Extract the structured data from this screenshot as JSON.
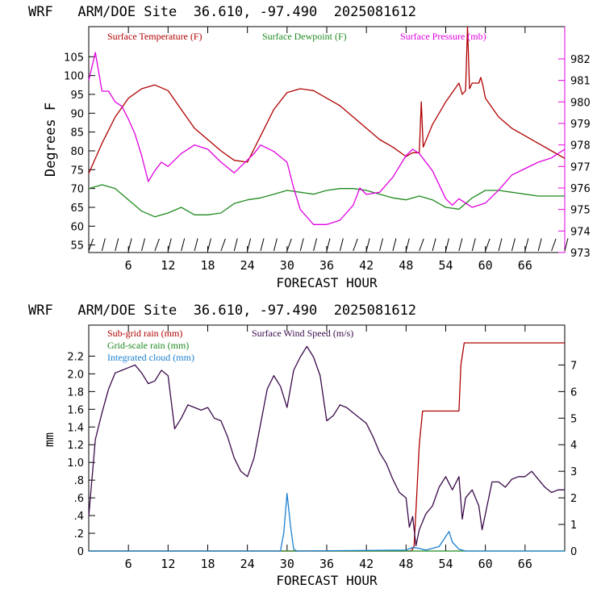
{
  "colors": {
    "temperature": "#b00000",
    "dewpoint": "#1f8a1f",
    "pressure": "#e000e0",
    "subgrid_rain": "#b00000",
    "gridscale_rain": "#1f8a1f",
    "cloud": "#1a7fd0",
    "wind": "#3a0a4a",
    "axis": "#000000"
  },
  "chart_data": [
    {
      "type": "line",
      "title": "WRF   ARM/DOE Site  36.610, -97.490  2025081612",
      "xlabel": "FORECAST HOUR",
      "ylabel": "Degrees F",
      "xlim": [
        0,
        72
      ],
      "ylim": [
        53,
        113
      ],
      "y2lim": [
        973,
        983.5
      ],
      "x_ticks": [
        6,
        12,
        18,
        24,
        30,
        36,
        42,
        48,
        54,
        60,
        66
      ],
      "y_ticks": [
        55,
        60,
        65,
        70,
        75,
        80,
        85,
        90,
        95,
        100,
        105
      ],
      "y2_ticks": [
        973,
        974,
        975,
        976,
        977,
        978,
        979,
        980,
        981,
        982
      ],
      "legend": [
        "Surface Temperature (F)",
        "Surface Dewpoint (F)",
        "Surface Pressure (mb)"
      ],
      "series": [
        {
          "name": "Surface Temperature (F)",
          "axis": "left",
          "x": [
            0,
            2,
            4,
            6,
            8,
            10,
            12,
            14,
            16,
            18,
            20,
            22,
            24,
            26,
            28,
            30,
            32,
            34,
            36,
            38,
            40,
            42,
            44,
            46,
            48,
            49,
            50,
            50.3,
            50.6,
            52,
            54,
            56,
            56.5,
            57,
            57.3,
            57.6,
            58,
            59,
            59.3,
            59.6,
            60,
            62,
            64,
            66,
            68,
            70,
            72
          ],
          "y": [
            74,
            82,
            89,
            94,
            96.5,
            97.5,
            96,
            91,
            86,
            83,
            80,
            77.5,
            77,
            84,
            91,
            95.5,
            96.5,
            96,
            94,
            92,
            89,
            86,
            83,
            81,
            78.5,
            79.5,
            79.5,
            93,
            81,
            87,
            93,
            98,
            95,
            96,
            113,
            96.5,
            98,
            98,
            99.5,
            97.5,
            94,
            89,
            86,
            84,
            82,
            80,
            78
          ]
        },
        {
          "name": "Surface Dewpoint (F)",
          "axis": "left",
          "x": [
            0,
            2,
            4,
            6,
            8,
            10,
            12,
            14,
            16,
            18,
            20,
            22,
            24,
            26,
            28,
            30,
            32,
            34,
            36,
            38,
            40,
            42,
            44,
            46,
            48,
            50,
            52,
            54,
            56,
            58,
            60,
            62,
            64,
            66,
            68,
            70,
            72
          ],
          "y": [
            70,
            71,
            70,
            67,
            64,
            62.5,
            63.5,
            65,
            63,
            63,
            63.5,
            66,
            67,
            67.5,
            68.5,
            69.5,
            69,
            68.5,
            69.5,
            70,
            70,
            69.5,
            68.5,
            67.5,
            67,
            68,
            67,
            65,
            64.5,
            67.5,
            69.5,
            69.5,
            69,
            68.5,
            68,
            68,
            68
          ]
        },
        {
          "name": "Surface Pressure (mb)",
          "axis": "right",
          "x": [
            0,
            1,
            2,
            3,
            4,
            5,
            6,
            7,
            8,
            9,
            10,
            11,
            12,
            14,
            16,
            18,
            20,
            22,
            23,
            25,
            26,
            28,
            30,
            31,
            32,
            34,
            36,
            38,
            40,
            41,
            42,
            44,
            46,
            48,
            49,
            50,
            52,
            54,
            55,
            56,
            57,
            58,
            60,
            62,
            64,
            66,
            68,
            70,
            72
          ],
          "y": [
            981,
            982.3,
            980.5,
            980.5,
            980,
            979.8,
            979.2,
            978.5,
            977.5,
            976.3,
            976.8,
            977.2,
            977,
            977.6,
            978,
            977.8,
            977.2,
            976.7,
            977,
            977.6,
            978,
            977.7,
            977.2,
            976,
            975,
            974.3,
            974.3,
            974.5,
            975.2,
            976,
            975.7,
            975.8,
            976.5,
            977.5,
            977.8,
            977.6,
            976.8,
            975.5,
            975.2,
            975.5,
            975.3,
            975.1,
            975.3,
            975.9,
            976.6,
            976.9,
            977.2,
            977.4,
            977.8
          ]
        }
      ]
    },
    {
      "type": "line",
      "title": "WRF   ARM/DOE Site  36.610, -97.490  2025081612",
      "xlabel": "FORECAST HOUR",
      "ylabel": "mm",
      "xlim": [
        0,
        72
      ],
      "ylim": [
        0,
        2.55
      ],
      "y2lim": [
        0,
        8.5
      ],
      "x_ticks": [
        6,
        12,
        18,
        24,
        30,
        36,
        42,
        48,
        54,
        60,
        66
      ],
      "y_ticks": [
        0,
        0.2,
        0.4,
        0.6,
        0.8,
        1.0,
        1.2,
        1.4,
        1.6,
        1.8,
        2.0,
        2.2
      ],
      "y_tick_labels": [
        "0",
        ".2",
        ".4",
        ".6",
        ".8",
        "1.0",
        "1.2",
        "1.4",
        "1.6",
        "1.8",
        "2.0",
        "2.2"
      ],
      "y2_ticks": [
        0,
        1,
        2,
        3,
        4,
        5,
        6,
        7
      ],
      "legend": [
        "Sub-grid rain (mm)",
        "Surface Wind Speed (m/s)",
        "Grid-scale rain (mm)",
        "Integrated cloud (mm)"
      ],
      "series": [
        {
          "name": "Sub-grid rain (mm)",
          "axis": "left",
          "x": [
            0,
            48.8,
            49.2,
            49.6,
            50,
            50.5,
            56,
            56.3,
            56.8,
            72
          ],
          "y": [
            0,
            0,
            0.05,
            0.6,
            1.2,
            1.58,
            1.58,
            2.1,
            2.35,
            2.35
          ]
        },
        {
          "name": "Grid-scale rain (mm)",
          "axis": "left",
          "x": [
            0,
            72
          ],
          "y": [
            0,
            0
          ]
        },
        {
          "name": "Integrated cloud (mm)",
          "axis": "left",
          "x": [
            0,
            29,
            29.5,
            30,
            30.5,
            31,
            31.5,
            48,
            49,
            50,
            51,
            53,
            54.5,
            55,
            56,
            57,
            72
          ],
          "y": [
            0,
            0,
            0.2,
            0.65,
            0.3,
            0.02,
            0,
            0.01,
            0.04,
            0.03,
            0.01,
            0.05,
            0.22,
            0.1,
            0.02,
            0,
            0
          ]
        },
        {
          "name": "Surface Wind Speed (m/s)",
          "axis": "right",
          "x": [
            0,
            1,
            2,
            3,
            4,
            5,
            6,
            7,
            8,
            9,
            10,
            11,
            12,
            13,
            14,
            15,
            16,
            17,
            18,
            19,
            20,
            21,
            22,
            23,
            24,
            25,
            26,
            27,
            28,
            29,
            30,
            31,
            32,
            33,
            34,
            35,
            36,
            37,
            38,
            39,
            40,
            41,
            42,
            43,
            44,
            45,
            46,
            47,
            48,
            48.5,
            49,
            49.5,
            50,
            51,
            52,
            53,
            54,
            55,
            56,
            56.5,
            57,
            58,
            59,
            59.5,
            60,
            61,
            62,
            63,
            64,
            65,
            66,
            67,
            68,
            69,
            70,
            71,
            72
          ],
          "y": [
            1.3,
            4.2,
            5.2,
            6.1,
            6.7,
            6.8,
            6.9,
            7.0,
            6.7,
            6.3,
            6.4,
            6.8,
            6.6,
            4.6,
            5.0,
            5.5,
            5.4,
            5.3,
            5.4,
            5.0,
            4.9,
            4.3,
            3.5,
            3.0,
            2.8,
            3.5,
            4.8,
            6.1,
            6.6,
            6.2,
            5.4,
            6.8,
            7.3,
            7.7,
            7.3,
            6.6,
            4.9,
            5.1,
            5.5,
            5.4,
            5.2,
            5.0,
            4.8,
            4.3,
            3.7,
            3.3,
            2.7,
            2.2,
            2.0,
            0.9,
            1.3,
            0.2,
            0.8,
            1.4,
            1.7,
            2.4,
            2.8,
            2.3,
            2.8,
            1.2,
            2.0,
            2.3,
            1.7,
            0.8,
            1.4,
            2.6,
            2.6,
            2.4,
            2.7,
            2.8,
            2.8,
            3.0,
            2.7,
            2.4,
            2.2,
            2.3,
            2.3
          ]
        }
      ],
      "wind_barbs_hours": [
        0,
        2,
        4,
        6,
        8,
        10,
        12,
        14,
        16,
        18,
        20,
        22,
        24,
        26,
        28,
        30,
        32,
        34,
        36,
        38,
        40,
        42,
        44,
        46,
        48,
        50,
        52,
        54,
        56,
        58,
        60,
        62,
        64,
        66,
        68,
        70,
        72
      ]
    }
  ]
}
